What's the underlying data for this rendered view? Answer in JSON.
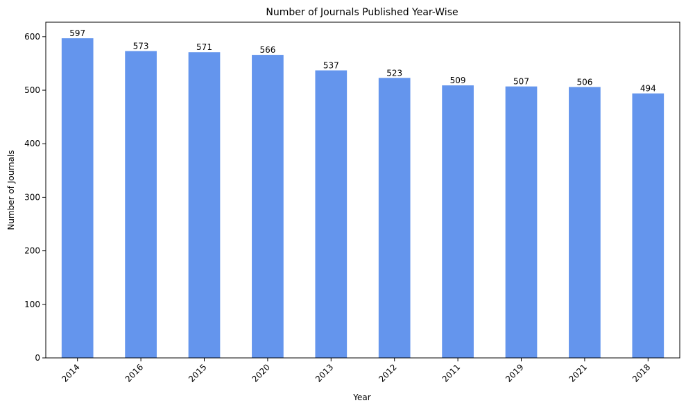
{
  "chart_data": {
    "type": "bar",
    "title": "Number of Journals Published Year-Wise",
    "xlabel": "Year",
    "ylabel": "Number of Journals",
    "categories": [
      "2014",
      "2016",
      "2015",
      "2020",
      "2013",
      "2012",
      "2011",
      "2019",
      "2021",
      "2018"
    ],
    "values": [
      597,
      573,
      571,
      566,
      537,
      523,
      509,
      507,
      506,
      494
    ],
    "data_labels": [
      "597",
      "573",
      "571",
      "566",
      "537",
      "523",
      "509",
      "507",
      "506",
      "494"
    ],
    "yticks": [
      0,
      100,
      200,
      300,
      400,
      500,
      600
    ],
    "ylim": [
      0,
      627
    ],
    "grid": false,
    "bar_color": "#6495ED"
  }
}
